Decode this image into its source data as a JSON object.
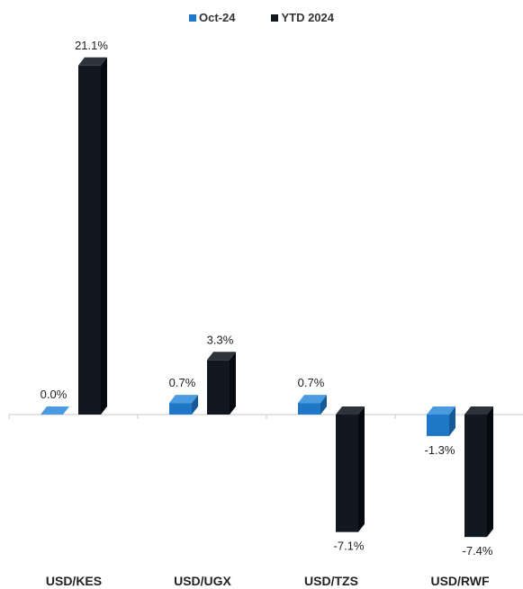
{
  "chart_data": {
    "type": "bar",
    "categories": [
      "USD/KES",
      "USD/UGX",
      "USD/TZS",
      "USD/RWF"
    ],
    "series": [
      {
        "name": "Oct-24",
        "values": [
          0.0,
          0.7,
          0.7,
          -1.3
        ],
        "labels": [
          "0.0%",
          "0.7%",
          "0.7%",
          "-1.3%"
        ],
        "color": "#1f77c8",
        "top_color": "#4a9be0",
        "side_color": "#155a96"
      },
      {
        "name": "YTD 2024",
        "values": [
          21.1,
          3.3,
          -7.1,
          -7.4
        ],
        "labels": [
          "21.1%",
          "3.3%",
          "-7.1%",
          "-7.4%"
        ],
        "color": "#111820",
        "top_color": "#2c333b",
        "side_color": "#050a0f"
      }
    ],
    "title": "",
    "xlabel": "",
    "ylabel": "",
    "legend_position": "top-center",
    "grid": false
  }
}
